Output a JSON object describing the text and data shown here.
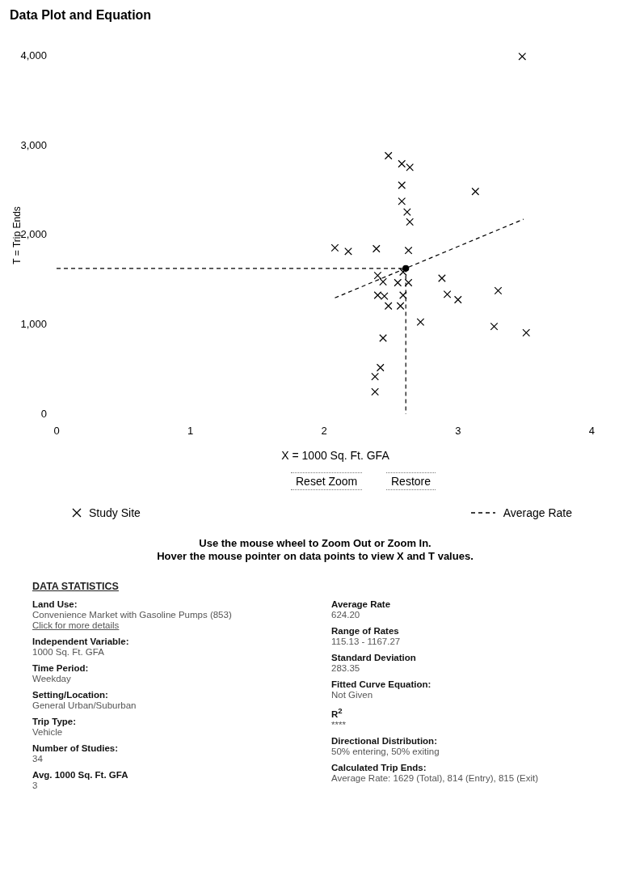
{
  "chart_data": [
    {
      "type": "scatter",
      "title": "Data Plot and Equation",
      "xlabel": "X = 1000 Sq. Ft. GFA",
      "ylabel": "T = Trip Ends",
      "xlim": [
        0,
        4
      ],
      "ylim": [
        0,
        4000
      ],
      "xticks": [
        0,
        1,
        2,
        3,
        4
      ],
      "yticks": [
        0,
        {
          "value": 1000,
          "label": "1,000"
        },
        {
          "value": 2000,
          "label": "2,000"
        },
        {
          "value": 3000,
          "label": "3,000"
        },
        {
          "value": 4000,
          "label": "4,000"
        }
      ],
      "legend": "bottom",
      "annotations": [
        "Reset Zoom",
        "Restore",
        "Use the mouse wheel to Zoom Out or Zoom In.",
        "Hover the mouse pointer on data points to view X and T values."
      ],
      "series": [
        {
          "name": "Study Site",
          "type": "scatter",
          "marker": "cross",
          "color": "#000000",
          "x": [
            3.48,
            3.13,
            3.3,
            3.27,
            3.51,
            2.88,
            2.92,
            3.0,
            2.72,
            2.48,
            2.58,
            2.64,
            2.58,
            2.58,
            2.62,
            2.64,
            2.63,
            2.39,
            2.18,
            2.08,
            2.63,
            2.59,
            2.55,
            2.59,
            2.57,
            2.48,
            2.44,
            2.4,
            2.45,
            2.4,
            2.44,
            2.42,
            2.38,
            2.38
          ],
          "values": [
            4000,
            2490,
            1380,
            980,
            910,
            1520,
            1340,
            1280,
            1030,
            2890,
            2800,
            2760,
            2560,
            2380,
            2260,
            2150,
            1830,
            1850,
            1820,
            1860,
            1470,
            1590,
            1470,
            1330,
            1210,
            1210,
            1480,
            1550,
            1320,
            1330,
            850,
            520,
            420,
            250
          ]
        },
        {
          "name": "Average Rate",
          "type": "line",
          "marker": "none",
          "line_style": "dashed",
          "color": "#000000",
          "x": [
            2.08,
            3.49
          ],
          "values": [
            1300,
            2180
          ]
        },
        {
          "type": "line",
          "marker": "none",
          "line_style": "dashed",
          "color": "#000000",
          "x": [
            0,
            2.61,
            2.61
          ],
          "values": [
            1630,
            1630,
            0
          ]
        },
        {
          "type": "scatter",
          "marker": "circle",
          "color": "#000000",
          "x": [
            2.61
          ],
          "values": [
            1630
          ]
        }
      ]
    },
    {
      "type": "other",
      "title": "DATA STATISTICS",
      "annotations": [
        "Land Use:",
        "Convenience Market with Gasoline Pumps (853)",
        "Click for more details",
        "Independent Variable:",
        "1000 Sq. Ft. GFA",
        "Time Period:",
        "Weekday",
        "Setting/Location:",
        "General Urban/Suburban",
        "Trip Type:",
        "Vehicle",
        "Number of Studies:",
        "34",
        "Avg. 1000 Sq. Ft. GFA",
        "3",
        "Average Rate",
        "624.20",
        "Range of Rates",
        "115.13 - 1167.27",
        "Standard Deviation",
        "283.35",
        "Fitted Curve Equation:",
        "Not Given",
        "R$^{2}$",
        "****",
        "Directional Distribution:",
        "50% entering, 50% exiting",
        "Calculated Trip Ends:",
        "Average Rate: 1629 (Total), 814 (Entry), 815 (Exit)"
      ]
    }
  ]
}
